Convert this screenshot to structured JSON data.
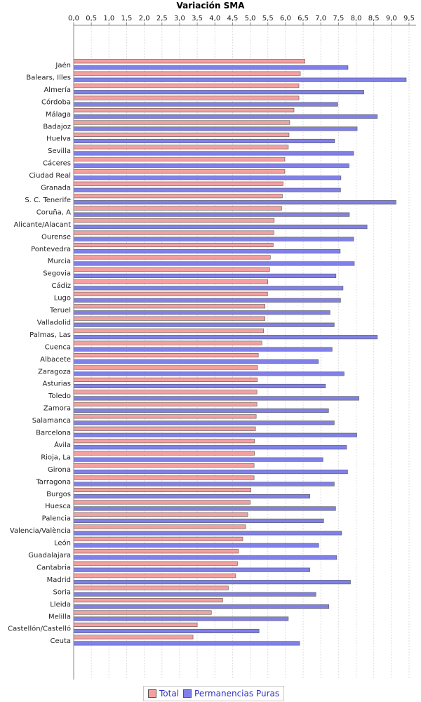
{
  "chart_data": {
    "type": "bar",
    "orientation": "horizontal",
    "title": "Variación SMA",
    "xlabel": "",
    "ylabel": "",
    "xlim": [
      0,
      9.5
    ],
    "ticks": [
      "0,0",
      "0,5",
      "1,0",
      "1,5",
      "2,0",
      "2,5",
      "3,0",
      "3,5",
      "4,0",
      "4,5",
      "5,0",
      "5,5",
      "6,0",
      "6,5",
      "7,0",
      "7,5",
      "8,0",
      "8,5",
      "9,0",
      "9,5"
    ],
    "grid": true,
    "legend_position": "bottom",
    "categories": [
      "Jaén",
      "Balears, Illes",
      "Almería",
      "Córdoba",
      "Málaga",
      "Badajoz",
      "Huelva",
      "Sevilla",
      "Cáceres",
      "Ciudad Real",
      "Granada",
      "S. C. Tenerife",
      "Coruña, A",
      "Alicante/Alacant",
      "Ourense",
      "Pontevedra",
      "Murcia",
      "Segovia",
      "Cádiz",
      "Lugo",
      "Teruel",
      "Valladolid",
      "Palmas, Las",
      "Cuenca",
      "Albacete",
      "Zaragoza",
      "Asturias",
      "Toledo",
      "Zamora",
      "Salamanca",
      "Barcelona",
      "Ávila",
      "Rioja, La",
      "Girona",
      "Tarragona",
      "Burgos",
      "Huesca",
      "Palencia",
      "Valencia/València",
      "León",
      "Guadalajara",
      "Cantabria",
      "Madrid",
      "Soria",
      "Lleida",
      "Melilla",
      "Castellón/Castelló",
      "Ceuta"
    ],
    "series": [
      {
        "name": "Total",
        "color": "#f4a0a0",
        "values": [
          6.55,
          6.42,
          6.38,
          6.38,
          6.24,
          6.12,
          6.1,
          6.08,
          5.98,
          5.98,
          5.93,
          5.91,
          5.89,
          5.68,
          5.67,
          5.65,
          5.57,
          5.55,
          5.5,
          5.49,
          5.42,
          5.42,
          5.38,
          5.33,
          5.23,
          5.21,
          5.2,
          5.19,
          5.19,
          5.17,
          5.15,
          5.12,
          5.12,
          5.11,
          5.11,
          5.02,
          5.0,
          4.93,
          4.87,
          4.79,
          4.67,
          4.64,
          4.59,
          4.38,
          4.22,
          3.9,
          3.5,
          3.38
        ]
      },
      {
        "name": "Permanencias Puras",
        "color": "#8080e8",
        "values": [
          7.77,
          9.42,
          8.22,
          7.48,
          8.6,
          8.03,
          7.39,
          7.93,
          7.8,
          7.57,
          7.56,
          9.13,
          7.81,
          8.31,
          7.93,
          7.55,
          7.95,
          7.43,
          7.63,
          7.56,
          7.26,
          7.38,
          8.6,
          7.32,
          6.93,
          7.66,
          7.13,
          8.08,
          7.22,
          7.38,
          8.02,
          7.73,
          7.06,
          7.76,
          7.38,
          6.69,
          7.42,
          7.08,
          7.59,
          6.94,
          7.45,
          6.69,
          7.84,
          6.86,
          7.23,
          6.08,
          5.25,
          6.4
        ]
      }
    ]
  }
}
